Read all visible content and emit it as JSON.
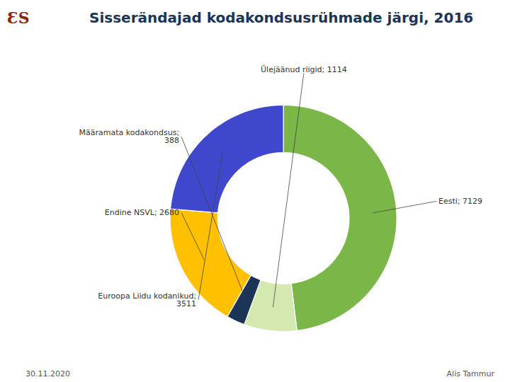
{
  "chart_data": {
    "type": "pie",
    "title": "Sisserändajad kodakondsusrühmade järgi, 2016",
    "categories": [
      "Eesti; 7129",
      "Ülejäänud riigid; 1114",
      "Määramata kodakondsus;\n388",
      "Endine NSVL; 2680",
      "Euroopa Liidu kodanikud;\n3511"
    ],
    "values": [
      7129,
      1114,
      388,
      2680,
      3511
    ],
    "colors": [
      "#7ab648",
      "#d4e9b0",
      "#1c3557",
      "#ffc000",
      "#3f48cc"
    ],
    "annotations": [
      "Ɛ",
      "S",
      "30.11.2020",
      "Alis Tammur"
    ]
  }
}
